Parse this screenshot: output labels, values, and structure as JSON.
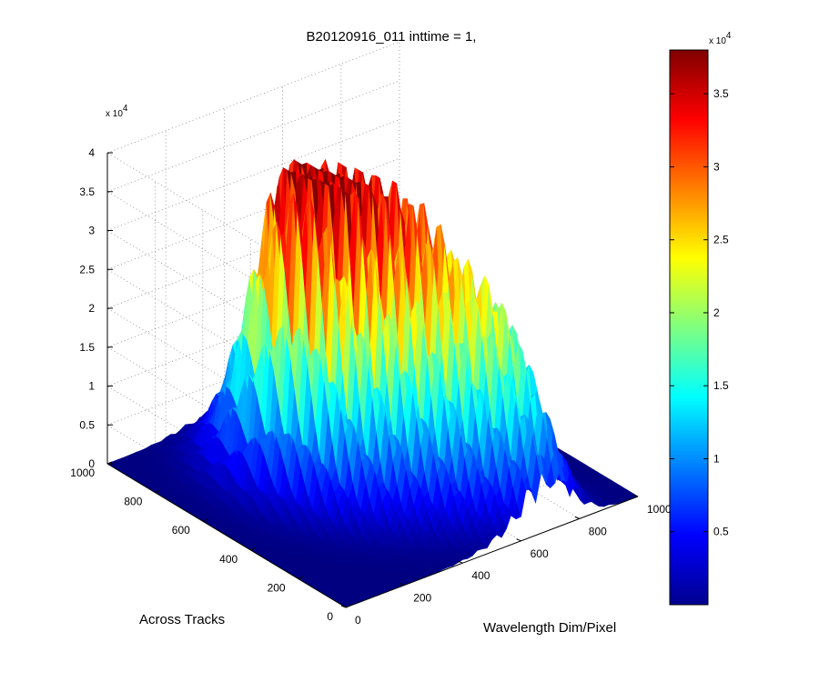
{
  "chart_data": {
    "type": "surface",
    "title": "B20120916_011 inttime = 1,",
    "xlabel": "Wavelength Dim/Pixel",
    "ylabel": "Across Tracks",
    "zlabel": "",
    "x_ticks": [
      "0",
      "200",
      "400",
      "600",
      "800",
      "1000"
    ],
    "y_ticks": [
      "0",
      "200",
      "400",
      "600",
      "800",
      "1000"
    ],
    "z_ticks": [
      "0",
      "0.5",
      "1",
      "1.5",
      "2",
      "2.5",
      "3",
      "3.5",
      "4"
    ],
    "z_multiplier": "x 10",
    "z_multiplier_exp": "4",
    "xlim": [
      0,
      1000
    ],
    "ylim": [
      0,
      1000
    ],
    "zlim": [
      0,
      40000
    ],
    "grid": true,
    "colormap": "jet",
    "colorbar": {
      "ticks": [
        "0.5",
        "1",
        "1.5",
        "2",
        "2.5",
        "3",
        "3.5"
      ],
      "multiplier": "x 10",
      "multiplier_exp": "4",
      "range": [
        0,
        38000
      ]
    },
    "peaks": [
      {
        "x": 330,
        "y": 620,
        "z": 37500
      },
      {
        "x": 420,
        "y": 480,
        "z": 28000
      },
      {
        "x": 560,
        "y": 360,
        "z": 28500
      },
      {
        "x": 700,
        "y": 200,
        "z": 22000
      }
    ]
  }
}
